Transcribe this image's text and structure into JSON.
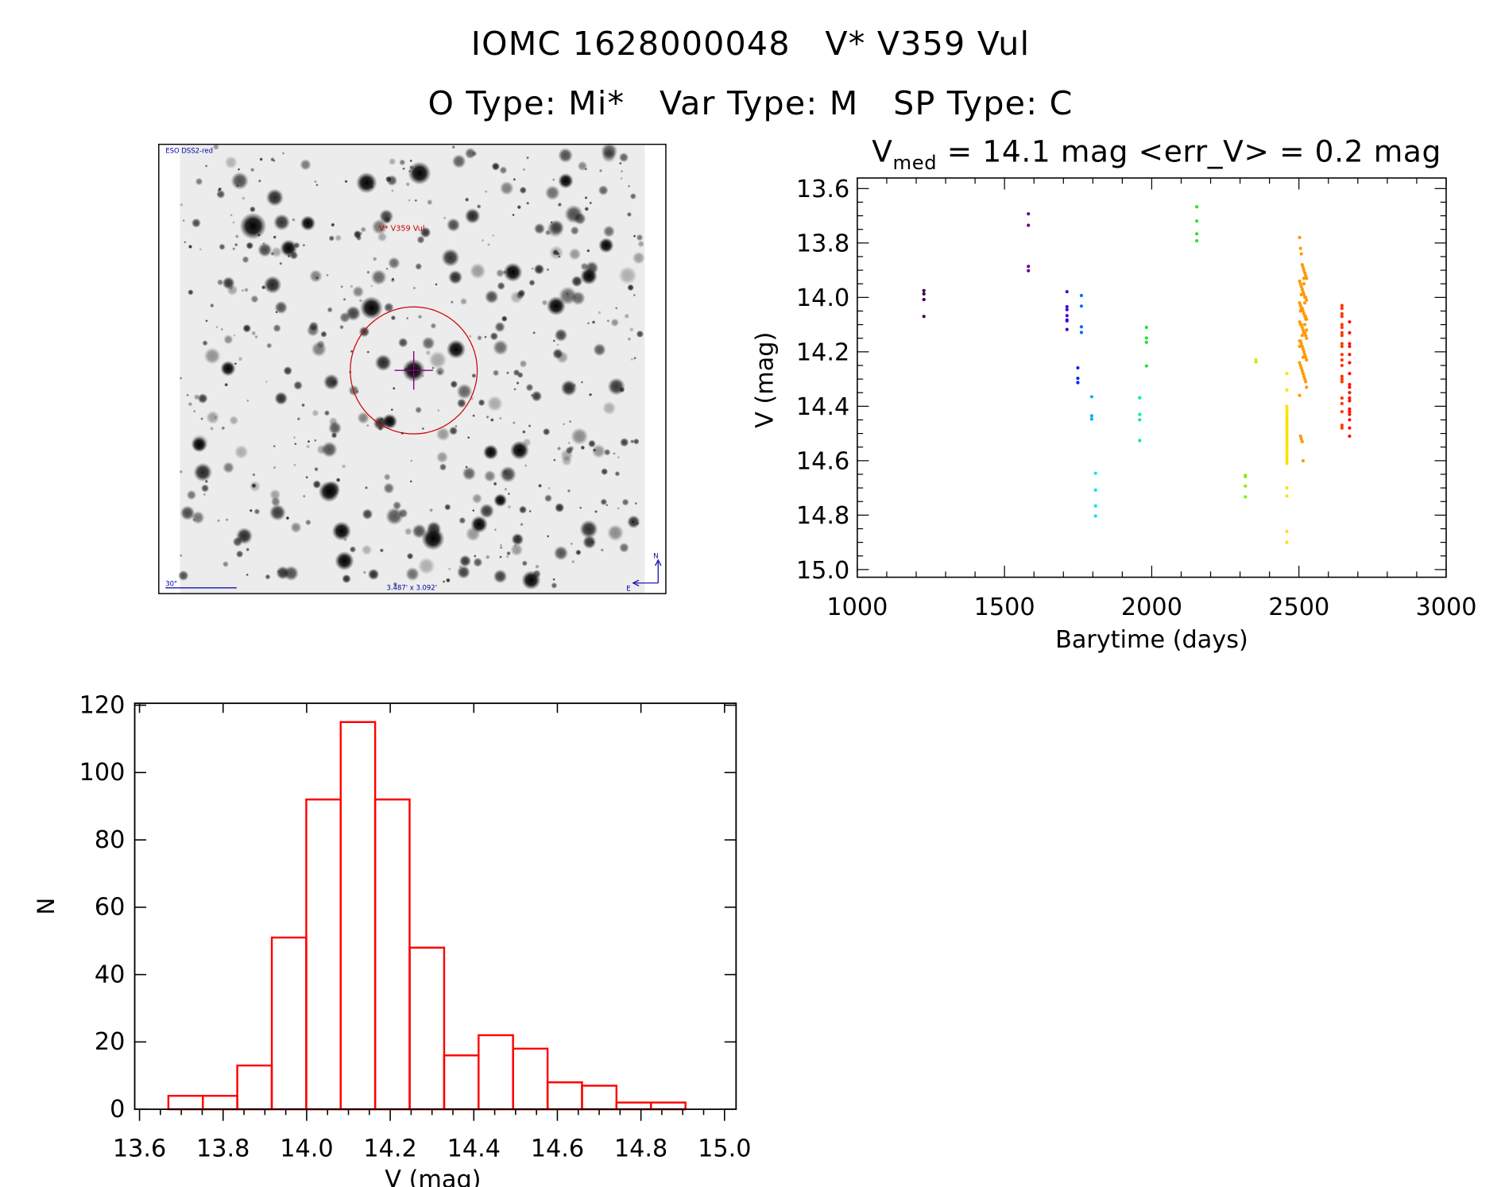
{
  "header": {
    "object_id": "IOMC 1628000048",
    "object_name": "V* V359 Vul",
    "o_type": "O Type: Mi*",
    "var_type": "Var Type: M",
    "sp_type": "SP Type: C"
  },
  "stats": {
    "vmed_symbol": "V",
    "vmed_sub": "med",
    "text": " = 14.1 mag <err_V> = 0.2 mag"
  },
  "finder": {
    "survey_label": "ESO DSS2-red",
    "target_label": "V* V359 Vul",
    "scale_label": "30\"",
    "fov_label": "3.487' x 3.092'",
    "north_label": "N",
    "east_label": "E",
    "circle_color": "#cc0000",
    "cross_color": "#880088",
    "label_color": "#0000aa"
  },
  "chart_data": [
    {
      "type": "scatter",
      "title": "V_med = 14.1 mag <err_V> = 0.2 mag",
      "xlabel": "Barytime (days)",
      "ylabel": "V (mag)",
      "xlim": [
        1000,
        3000
      ],
      "ylim": [
        13.6,
        15.0
      ],
      "y_inverted": true,
      "xticks": [
        "1000",
        "1500",
        "2000",
        "2500",
        "3000"
      ],
      "yticks": [
        "13.6",
        "13.8",
        "14.0",
        "14.2",
        "14.4",
        "14.6",
        "14.8",
        "15.0"
      ],
      "series": [
        {
          "color": "#3d0047",
          "t": 1226,
          "v": [
            13.975,
            13.987,
            14.008,
            14.07
          ]
        },
        {
          "color": "#6a0090",
          "t": 1581,
          "v": [
            13.693,
            13.735,
            13.886,
            13.902
          ]
        },
        {
          "color": "#4000e0",
          "t": 1712,
          "v": [
            13.979,
            14.034,
            14.045,
            14.067,
            14.083,
            14.086,
            14.118
          ]
        },
        {
          "color": "#0020ff",
          "t": 1749,
          "v": [
            14.259,
            14.297,
            14.313
          ]
        },
        {
          "color": "#0070ff",
          "t": 1761,
          "v": [
            13.993,
            14.032,
            14.108,
            14.129
          ]
        },
        {
          "color": "#00b0ff",
          "t": 1796,
          "v": [
            14.365,
            14.435,
            14.447
          ]
        },
        {
          "color": "#00e8f0",
          "t": 1809,
          "v": [
            14.646,
            14.708,
            14.766,
            14.803
          ]
        },
        {
          "color": "#00f090",
          "t": 1959,
          "v": [
            14.369,
            14.43,
            14.45,
            14.526
          ]
        },
        {
          "color": "#10e830",
          "t": 1982,
          "v": [
            14.11,
            14.149,
            14.165,
            14.252
          ]
        },
        {
          "color": "#20e820",
          "t": 2153,
          "v": [
            13.667,
            13.719,
            13.766,
            13.792
          ]
        },
        {
          "color": "#80f000",
          "t": 2318,
          "v": [
            14.654,
            14.659,
            14.693,
            14.733
          ]
        },
        {
          "color": "#c8f000",
          "t": 2354,
          "v": [
            14.23,
            14.237
          ]
        },
        {
          "color": "#ffe000",
          "t": 2459,
          "v": [
            14.28,
            14.34,
            14.4,
            14.41,
            14.42,
            14.43,
            14.44,
            14.45,
            14.46,
            14.47,
            14.48,
            14.49,
            14.5,
            14.51,
            14.52,
            14.53,
            14.54,
            14.55,
            14.56,
            14.57,
            14.58,
            14.59,
            14.6,
            14.61,
            14.7,
            14.73,
            14.86,
            14.9
          ]
        },
        {
          "color": "#ff9900",
          "t": 2514,
          "v": [
            13.78,
            13.82,
            13.84,
            13.88,
            13.89,
            13.9,
            13.91,
            13.92,
            13.93,
            13.94,
            13.95,
            13.96,
            13.97,
            13.98,
            13.99,
            14.0,
            14.0,
            14.01,
            14.02,
            14.03,
            14.04,
            14.04,
            14.05,
            14.06,
            14.07,
            14.07,
            14.08,
            14.09,
            14.1,
            14.1,
            14.11,
            14.12,
            14.13,
            14.13,
            14.14,
            14.15,
            14.16,
            14.16,
            14.17,
            14.18,
            14.19,
            14.2,
            14.21,
            14.22,
            14.23,
            14.24,
            14.25,
            14.26,
            14.27,
            14.28,
            14.29,
            14.3,
            14.31,
            14.33,
            14.36,
            14.51,
            14.52,
            14.53,
            14.6,
            13.95,
            14.02,
            14.08,
            14.12,
            14.18,
            14.05,
            13.99,
            14.14,
            14.22,
            13.93,
            14.1
          ]
        },
        {
          "color": "#ff3800",
          "t": 2646,
          "v": [
            14.03,
            14.04,
            14.06,
            14.07,
            14.1,
            14.11,
            14.13,
            14.14,
            14.17,
            14.18,
            14.21,
            14.23,
            14.25,
            14.29,
            14.3,
            14.31,
            14.37,
            14.39,
            14.42,
            14.47,
            14.48
          ]
        },
        {
          "color": "#ff1000",
          "t": 2672,
          "v": [
            14.09,
            14.13,
            14.17,
            14.18,
            14.21,
            14.24,
            14.28,
            14.32,
            14.33,
            14.35,
            14.37,
            14.38,
            14.41,
            14.42,
            14.43,
            14.45,
            14.48,
            14.51
          ]
        }
      ]
    },
    {
      "type": "bar",
      "subtype": "histogram",
      "xlabel": "V (mag)",
      "ylabel": "N",
      "xlim": [
        13.6,
        15.0
      ],
      "ylim": [
        0,
        120
      ],
      "xticks": [
        "13.6",
        "13.8",
        "14.0",
        "14.2",
        "14.4",
        "14.6",
        "14.8",
        "15.0"
      ],
      "yticks": [
        "0",
        "20",
        "40",
        "60",
        "80",
        "100",
        "120"
      ],
      "bin_start": 13.669,
      "bin_width": 0.0825,
      "counts": [
        4,
        4,
        13,
        51,
        92,
        115,
        92,
        48,
        16,
        22,
        18,
        8,
        7,
        2,
        2
      ],
      "color": "#ff0000"
    }
  ]
}
